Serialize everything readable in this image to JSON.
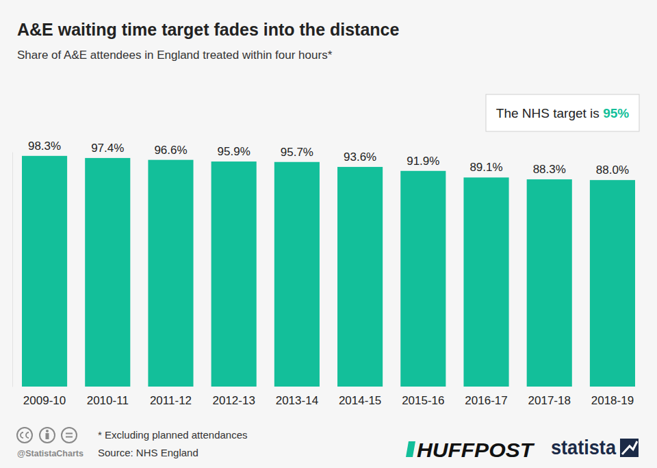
{
  "chart_data": {
    "type": "bar",
    "title": "A&E waiting time target fades into the distance",
    "subtitle": "Share of A&E attendees in England treated within four hours*",
    "categories": [
      "2009-10",
      "2010-11",
      "2011-12",
      "2012-13",
      "2013-14",
      "2014-15",
      "2015-16",
      "2016-17",
      "2017-18",
      "2018-19"
    ],
    "values": [
      98.3,
      97.4,
      96.6,
      95.9,
      95.7,
      93.6,
      91.9,
      89.1,
      88.3,
      88.0
    ],
    "value_labels": [
      "98.3%",
      "97.4%",
      "96.6%",
      "95.9%",
      "95.7%",
      "93.6%",
      "91.9%",
      "89.1%",
      "88.3%",
      "88.0%"
    ],
    "color": "#13bf9a",
    "ylim": [
      0,
      100
    ],
    "data_labels": true,
    "tick_labels": "x",
    "annotation": "The NHS target is 95%",
    "footnote": "* Excluding planned attendances",
    "source": "Source: NHS England",
    "credit": "@StatistaCharts",
    "logos": [
      "HUFFPOST",
      "statista"
    ]
  }
}
